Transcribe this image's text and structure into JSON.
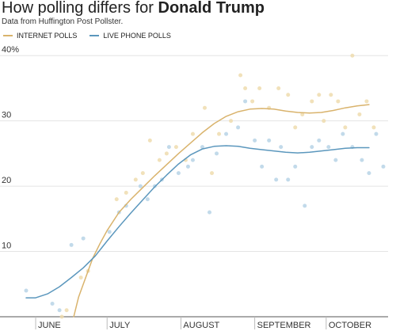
{
  "chart_data": {
    "type": "line",
    "title_prefix": "How polling differs for ",
    "title_bold": "Donald Trump",
    "subtitle": "Data from Huffington Post Pollster.",
    "xlabel": "",
    "ylabel": "",
    "y_tick_labels": [
      "40%",
      "30",
      "20",
      "10"
    ],
    "y_ticks": [
      40,
      30,
      20,
      10
    ],
    "ylim": [
      0,
      41
    ],
    "x_tick_labels": [
      "JUNE",
      "JULY",
      "AUGUST",
      "SEPTEMBER",
      "OCTOBER"
    ],
    "x_ticks": [
      0,
      30,
      61,
      92,
      122
    ],
    "xlim": [
      -5,
      148
    ],
    "grid": true,
    "legend_position": "top-left",
    "series": [
      {
        "name": "INTERNET POLLS",
        "color": "#d9b36c",
        "dot_color": "#efdcae",
        "line": [
          [
            16,
            0
          ],
          [
            18,
            3
          ],
          [
            21,
            6
          ],
          [
            24,
            9
          ],
          [
            27,
            11.2
          ],
          [
            30,
            13.2
          ],
          [
            35,
            16
          ],
          [
            40,
            18
          ],
          [
            45,
            19.8
          ],
          [
            50,
            21.6
          ],
          [
            55,
            23.3
          ],
          [
            60,
            25
          ],
          [
            65,
            26.6
          ],
          [
            70,
            28.2
          ],
          [
            75,
            29.6
          ],
          [
            80,
            30.7
          ],
          [
            85,
            31.4
          ],
          [
            90,
            31.8
          ],
          [
            95,
            31.9
          ],
          [
            100,
            31.8
          ],
          [
            105,
            31.5
          ],
          [
            110,
            31.3
          ],
          [
            115,
            31.2
          ],
          [
            120,
            31.3
          ],
          [
            125,
            31.6
          ],
          [
            130,
            32
          ],
          [
            135,
            32.3
          ],
          [
            140,
            32.5
          ]
        ],
        "points": [
          [
            11,
            0
          ],
          [
            13,
            1
          ],
          [
            19,
            6
          ],
          [
            22,
            7
          ],
          [
            34,
            18
          ],
          [
            38,
            19
          ],
          [
            42,
            21
          ],
          [
            45,
            22
          ],
          [
            48,
            27
          ],
          [
            52,
            24
          ],
          [
            55,
            25
          ],
          [
            59,
            26
          ],
          [
            63,
            24
          ],
          [
            66,
            28
          ],
          [
            71,
            32
          ],
          [
            74,
            22
          ],
          [
            77,
            28
          ],
          [
            82,
            30
          ],
          [
            86,
            37
          ],
          [
            88,
            35
          ],
          [
            91,
            33
          ],
          [
            94,
            35
          ],
          [
            98,
            32
          ],
          [
            102,
            35
          ],
          [
            106,
            34
          ],
          [
            109,
            29
          ],
          [
            112,
            31
          ],
          [
            116,
            33
          ],
          [
            119,
            34
          ],
          [
            121,
            30
          ],
          [
            124,
            34
          ],
          [
            127,
            33
          ],
          [
            130,
            29
          ],
          [
            133,
            40
          ],
          [
            136,
            31
          ],
          [
            139,
            33
          ],
          [
            142,
            29
          ]
        ]
      },
      {
        "name": "LIVE PHONE POLLS",
        "color": "#5b97bd",
        "dot_color": "#b7d3e6",
        "line": [
          [
            -4,
            2.9
          ],
          [
            0,
            2.9
          ],
          [
            5,
            3.5
          ],
          [
            10,
            4.6
          ],
          [
            15,
            6
          ],
          [
            20,
            7.5
          ],
          [
            25,
            9.3
          ],
          [
            30,
            11.6
          ],
          [
            35,
            13.8
          ],
          [
            40,
            15.9
          ],
          [
            45,
            17.9
          ],
          [
            50,
            19.9
          ],
          [
            55,
            21.7
          ],
          [
            60,
            23.4
          ],
          [
            65,
            24.8
          ],
          [
            70,
            25.7
          ],
          [
            75,
            26.1
          ],
          [
            80,
            26.2
          ],
          [
            85,
            26.1
          ],
          [
            90,
            25.8
          ],
          [
            95,
            25.6
          ],
          [
            100,
            25.4
          ],
          [
            105,
            25.2
          ],
          [
            110,
            25.1
          ],
          [
            115,
            25.2
          ],
          [
            120,
            25.4
          ],
          [
            125,
            25.6
          ],
          [
            130,
            25.8
          ],
          [
            135,
            25.9
          ],
          [
            140,
            25.9
          ]
        ],
        "points": [
          [
            -4,
            4
          ],
          [
            7,
            2
          ],
          [
            10,
            1
          ],
          [
            15,
            11
          ],
          [
            20,
            12
          ],
          [
            31,
            13
          ],
          [
            35,
            16
          ],
          [
            38,
            17
          ],
          [
            44,
            20
          ],
          [
            47,
            18
          ],
          [
            50,
            20
          ],
          [
            53,
            21
          ],
          [
            56,
            26
          ],
          [
            60,
            22
          ],
          [
            64,
            23
          ],
          [
            66,
            24
          ],
          [
            70,
            26
          ],
          [
            73,
            16
          ],
          [
            76,
            25
          ],
          [
            80,
            28
          ],
          [
            85,
            29
          ],
          [
            88,
            33
          ],
          [
            92,
            27
          ],
          [
            95,
            23
          ],
          [
            98,
            27
          ],
          [
            101,
            21
          ],
          [
            103,
            26
          ],
          [
            106,
            21
          ],
          [
            109,
            23
          ],
          [
            113,
            17
          ],
          [
            116,
            26
          ],
          [
            119,
            27
          ],
          [
            123,
            26
          ],
          [
            126,
            24
          ],
          [
            129,
            28
          ],
          [
            133,
            26
          ],
          [
            137,
            24
          ],
          [
            140,
            22
          ],
          [
            143,
            28
          ],
          [
            146,
            23
          ]
        ]
      }
    ]
  }
}
